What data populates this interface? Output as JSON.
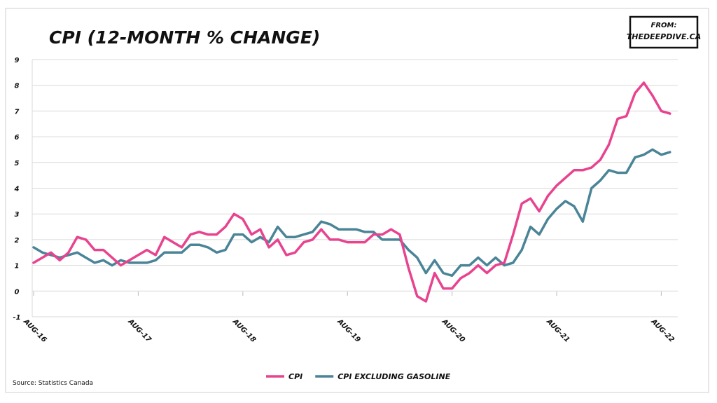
{
  "chart_data": {
    "type": "line",
    "title": "CPI (12-MONTH % CHANGE)",
    "credit": [
      "FROM:",
      "THEDEEPDIVE.CA"
    ],
    "source": "Source: Statistics Canada",
    "categories": [
      "AUG-16",
      null,
      null,
      null,
      null,
      null,
      null,
      null,
      null,
      null,
      null,
      null,
      "AUG-17",
      null,
      null,
      null,
      null,
      null,
      null,
      null,
      null,
      null,
      null,
      null,
      "AUG-18",
      null,
      null,
      null,
      null,
      null,
      null,
      null,
      null,
      null,
      null,
      null,
      "AUG-19",
      null,
      null,
      null,
      null,
      null,
      null,
      null,
      null,
      null,
      null,
      null,
      "AUG-20",
      null,
      null,
      null,
      null,
      null,
      null,
      null,
      null,
      null,
      null,
      null,
      "AUG-21",
      null,
      null,
      null,
      null,
      null,
      null,
      null,
      null,
      null,
      null,
      null,
      "AUG-22",
      null
    ],
    "series": [
      {
        "name": "CPI",
        "color": "#e8438f",
        "values": [
          1.1,
          1.3,
          1.5,
          1.2,
          1.5,
          2.1,
          2.0,
          1.6,
          1.6,
          1.3,
          1.0,
          1.2,
          1.4,
          1.6,
          1.4,
          2.1,
          1.9,
          1.7,
          2.2,
          2.3,
          2.2,
          2.2,
          2.5,
          3.0,
          2.8,
          2.2,
          2.4,
          1.7,
          2.0,
          1.4,
          1.5,
          1.9,
          2.0,
          2.4,
          2.0,
          2.0,
          1.9,
          1.9,
          1.9,
          2.2,
          2.2,
          2.4,
          2.2,
          0.9,
          -0.2,
          -0.4,
          0.7,
          0.1,
          0.1,
          0.5,
          0.7,
          1.0,
          0.7,
          1.0,
          1.1,
          2.2,
          3.4,
          3.6,
          3.1,
          3.7,
          4.1,
          4.4,
          4.7,
          4.7,
          4.8,
          5.1,
          5.7,
          6.7,
          6.8,
          7.7,
          8.1,
          7.6,
          7.0,
          6.9
        ]
      },
      {
        "name": "CPI EXCLUDING GASOLINE",
        "color": "#4a8497",
        "values": [
          1.7,
          1.5,
          1.4,
          1.3,
          1.4,
          1.5,
          1.3,
          1.1,
          1.2,
          1.0,
          1.2,
          1.1,
          1.1,
          1.1,
          1.2,
          1.5,
          1.5,
          1.5,
          1.8,
          1.8,
          1.7,
          1.5,
          1.6,
          2.2,
          2.2,
          1.9,
          2.1,
          1.9,
          2.5,
          2.1,
          2.1,
          2.2,
          2.3,
          2.7,
          2.6,
          2.4,
          2.4,
          2.4,
          2.3,
          2.3,
          2.0,
          2.0,
          2.0,
          1.6,
          1.3,
          0.7,
          1.2,
          0.7,
          0.6,
          1.0,
          1.0,
          1.3,
          1.0,
          1.3,
          1.0,
          1.1,
          1.6,
          2.5,
          2.2,
          2.8,
          3.2,
          3.5,
          3.3,
          2.7,
          4.0,
          4.3,
          4.7,
          4.6,
          4.6,
          5.2,
          5.3,
          5.5,
          5.3,
          5.4
        ]
      }
    ],
    "ylim": [
      -1,
      9
    ],
    "yticks": [
      -1,
      0,
      1,
      2,
      3,
      4,
      5,
      6,
      7,
      8,
      9
    ],
    "grid": true,
    "legend": "bottom"
  }
}
